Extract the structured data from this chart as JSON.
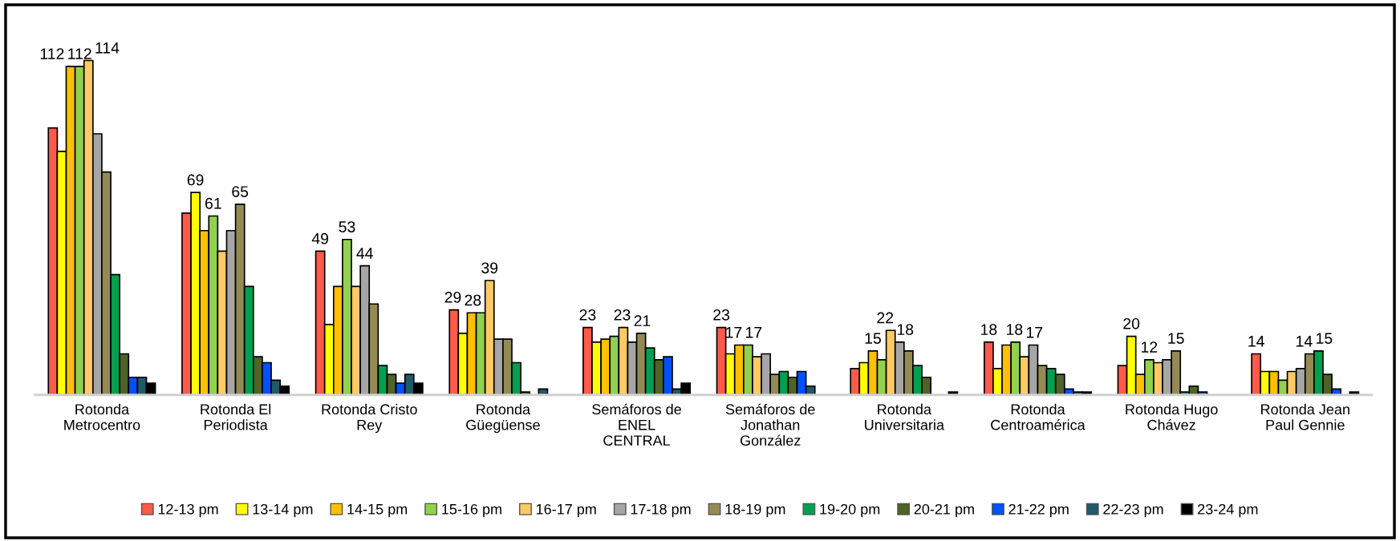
{
  "chart_data": {
    "type": "bar",
    "categories": [
      "Rotonda\nMetrocentro",
      "Rotonda El\nPeriodista",
      "Rotonda Cristo\nRey",
      "Rotonda\nGüegüense",
      "Semáforos de\nENEL\nCENTRAL",
      "Semáforos de\nJonathan\nGonzález",
      "Rotonda\nUniversitaria",
      "Rotonda\nCentroamérica",
      "Rotonda Hugo\nChávez",
      "Rotonda Jean\nPaul Gennie"
    ],
    "series": [
      {
        "name": "12-13 pm",
        "color": "#ff5a4a",
        "values": [
          91,
          62,
          49,
          29,
          23,
          23,
          9,
          18,
          10,
          14
        ],
        "value_labels": [
          null,
          null,
          "49",
          "29",
          "23",
          "23",
          null,
          "18",
          null,
          "14"
        ]
      },
      {
        "name": "13-14 pm",
        "color": "#ffff00",
        "values": [
          83,
          69,
          24,
          21,
          18,
          14,
          11,
          9,
          20,
          8
        ],
        "value_labels": [
          null,
          "69",
          null,
          null,
          null,
          null,
          null,
          null,
          "20",
          null
        ]
      },
      {
        "name": "14-15 pm",
        "color": "#ffc000",
        "values": [
          112,
          56,
          37,
          28,
          19,
          17,
          15,
          17,
          7,
          8
        ],
        "value_labels": [
          "112",
          null,
          null,
          "28",
          null,
          "17",
          "15",
          null,
          null,
          null
        ]
      },
      {
        "name": "15-16 pm",
        "color": "#92d050",
        "values": [
          112,
          61,
          53,
          28,
          20,
          17,
          12,
          18,
          12,
          5
        ],
        "value_labels": [
          "112",
          "61",
          "53",
          null,
          null,
          "17",
          null,
          "18",
          "12",
          null
        ]
      },
      {
        "name": "16-17 pm",
        "color": "#ffc966",
        "values": [
          114,
          49,
          37,
          39,
          23,
          13,
          22,
          13,
          11,
          8
        ],
        "value_labels": [
          "114",
          null,
          null,
          "39",
          "23",
          null,
          "22",
          null,
          null,
          null
        ]
      },
      {
        "name": "17-18 pm",
        "color": "#a6a6a6",
        "values": [
          89,
          56,
          44,
          19,
          18,
          14,
          18,
          17,
          12,
          9
        ],
        "value_labels": [
          null,
          null,
          "44",
          null,
          null,
          null,
          "18",
          "17",
          null,
          null
        ]
      },
      {
        "name": "18-19 pm",
        "color": "#948a54",
        "values": [
          76,
          65,
          31,
          19,
          21,
          7,
          15,
          10,
          15,
          14
        ],
        "value_labels": [
          null,
          "65",
          null,
          null,
          "21",
          null,
          null,
          null,
          "15",
          "14"
        ]
      },
      {
        "name": "19-20 pm",
        "color": "#00a050",
        "values": [
          41,
          37,
          10,
          11,
          16,
          8,
          10,
          9,
          1,
          15
        ],
        "value_labels": [
          null,
          null,
          null,
          null,
          null,
          null,
          null,
          null,
          null,
          "15"
        ]
      },
      {
        "name": "20-21 pm",
        "color": "#4f6228",
        "values": [
          14,
          13,
          7,
          1,
          12,
          6,
          6,
          7,
          3,
          7
        ]
      },
      {
        "name": "21-22 pm",
        "color": "#0050ff",
        "values": [
          6,
          11,
          4,
          0,
          13,
          8,
          0,
          2,
          1,
          2
        ]
      },
      {
        "name": "22-23 pm",
        "color": "#215968",
        "values": [
          6,
          5,
          7,
          2,
          2,
          3,
          0,
          1,
          0,
          0
        ]
      },
      {
        "name": "23-24 pm",
        "color": "#000000",
        "values": [
          4,
          3,
          4,
          0,
          4,
          0,
          1,
          1,
          0,
          1
        ]
      }
    ],
    "legend": "bottom",
    "grid": false
  }
}
